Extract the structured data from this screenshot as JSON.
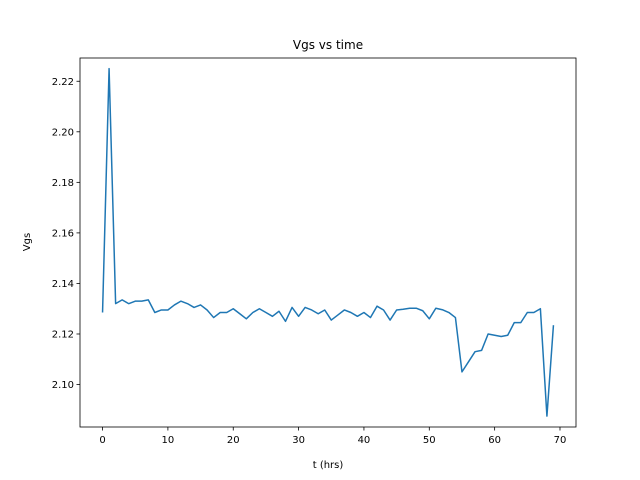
{
  "chart_data": {
    "type": "line",
    "title": "Vgs vs time",
    "xlabel": "t (hrs)",
    "ylabel": "Vgs",
    "xlim": [
      -3.45,
      72.45
    ],
    "ylim": [
      2.0832,
      2.2292
    ],
    "xticks": [
      0,
      10,
      20,
      30,
      40,
      50,
      60,
      70
    ],
    "yticks": [
      2.1,
      2.12,
      2.14,
      2.16,
      2.18,
      2.2,
      2.22
    ],
    "ytick_labels": [
      "2.10",
      "2.12",
      "2.14",
      "2.16",
      "2.18",
      "2.20",
      "2.22"
    ],
    "grid": false,
    "legend": "none",
    "series": [
      {
        "color": "#1f77b4",
        "x": [
          0,
          1,
          2,
          3,
          4,
          5,
          6,
          7,
          8,
          9,
          10,
          11,
          12,
          13,
          14,
          15,
          16,
          17,
          18,
          19,
          20,
          21,
          22,
          23,
          24,
          25,
          26,
          27,
          28,
          29,
          30,
          31,
          32,
          33,
          34,
          35,
          36,
          37,
          38,
          39,
          40,
          41,
          42,
          43,
          44,
          45,
          46,
          47,
          48,
          49,
          50,
          51,
          52,
          53,
          54,
          55,
          56,
          57,
          58,
          59,
          60,
          61,
          62,
          63,
          64,
          65,
          66,
          67,
          68,
          69
        ],
        "values": [
          2.1285,
          2.225,
          2.132,
          2.1335,
          2.132,
          2.133,
          2.133,
          2.1335,
          2.1285,
          2.1295,
          2.1295,
          2.1315,
          2.133,
          2.132,
          2.1305,
          2.1315,
          2.1295,
          2.1265,
          2.1285,
          2.1285,
          2.13,
          2.128,
          2.126,
          2.1285,
          2.13,
          2.1285,
          2.127,
          2.129,
          2.125,
          2.1305,
          2.127,
          2.1305,
          2.1295,
          2.128,
          2.1295,
          2.1255,
          2.1275,
          2.1295,
          2.1285,
          2.127,
          2.1285,
          2.1265,
          2.131,
          2.1295,
          2.1255,
          2.1295,
          2.1298,
          2.1302,
          2.1302,
          2.1292,
          2.126,
          2.1302,
          2.1296,
          2.1285,
          2.1265,
          2.105,
          2.109,
          2.113,
          2.1135,
          2.12,
          2.1195,
          2.119,
          2.1195,
          2.1245,
          2.1245,
          2.1285,
          2.1285,
          2.13,
          2.0875,
          2.1235
        ]
      }
    ]
  }
}
